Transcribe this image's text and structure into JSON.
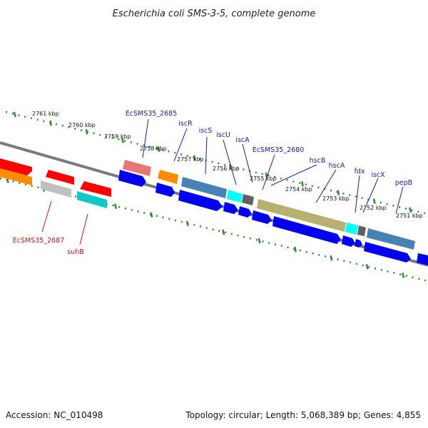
{
  "title": "Escherichia coli SMS-3-5, complete genome",
  "footer": {
    "accession": "Accession: NC_010498",
    "summary": "Topology: circular; Length: 5,068,389 bp; Genes: 4,855"
  },
  "colors": {
    "backbone": "#808080",
    "tick": "#2e8b2e",
    "label_top": "#1a1aa0",
    "label_bottom": "#cc1111"
  },
  "scale": [
    {
      "label": "2761 kbp"
    },
    {
      "label": "2760 kbp"
    },
    {
      "label": "2759 kbp"
    },
    {
      "label": "2758 kbp"
    },
    {
      "label": "2757 kbp"
    },
    {
      "label": "2756 kbp"
    },
    {
      "label": "2755 kbp"
    },
    {
      "label": "2754 kbp"
    },
    {
      "label": "2753 kbp"
    },
    {
      "label": "2752 kbp"
    },
    {
      "label": "2751 kbp"
    }
  ],
  "genes_top": [
    {
      "name": "EcSMS35_2685",
      "color": "#1a1aa0"
    },
    {
      "name": "iscR",
      "color": "#1a1aa0"
    },
    {
      "name": "iscS",
      "color": "#1a1aa0"
    },
    {
      "name": "iscU",
      "color": "#1a1aa0"
    },
    {
      "name": "iscA",
      "color": "#1a1aa0"
    },
    {
      "name": "EcSMS35_2680",
      "color": "#1a1aa0"
    },
    {
      "name": "hscB",
      "color": "#1a1aa0"
    },
    {
      "name": "hscA",
      "color": "#1a1aa0"
    },
    {
      "name": "fdx",
      "color": "#1a1aa0"
    },
    {
      "name": "iscX",
      "color": "#1a1aa0"
    },
    {
      "name": "pepB",
      "color": "#1a1aa0"
    }
  ],
  "genes_bottom": [
    {
      "name": "EcSMS35_2687",
      "color": "#cc1111"
    },
    {
      "name": "suhB",
      "color": "#cc1111"
    }
  ]
}
